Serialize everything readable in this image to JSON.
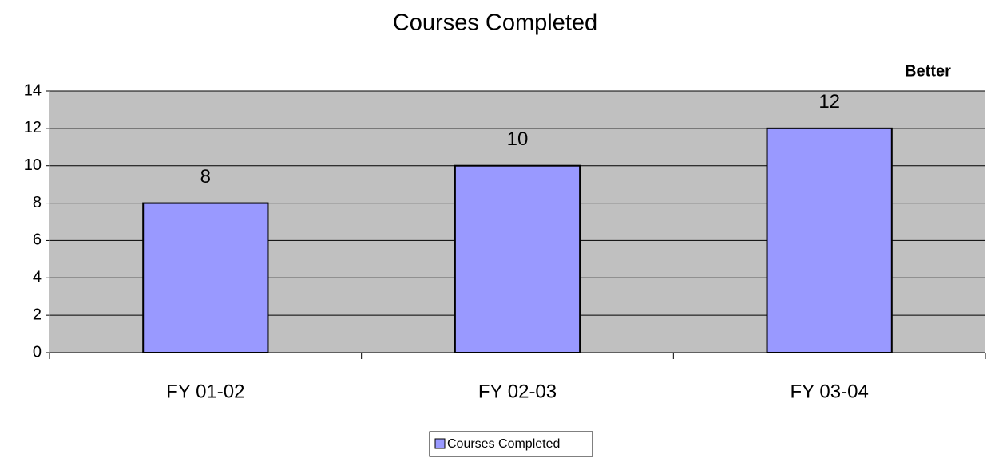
{
  "chart_data": {
    "type": "bar",
    "title": "Courses Completed",
    "categories": [
      "FY 01-02",
      "FY 02-03",
      "FY 03-04"
    ],
    "series": [
      {
        "name": "Courses Completed",
        "color": "#9999ff",
        "values": [
          8,
          10,
          12
        ]
      }
    ],
    "ylim": [
      0,
      14
    ],
    "yticks": [
      0,
      2,
      4,
      6,
      8,
      10,
      12,
      14
    ],
    "grid": true,
    "annotation": "Better",
    "legend": "bottom"
  }
}
